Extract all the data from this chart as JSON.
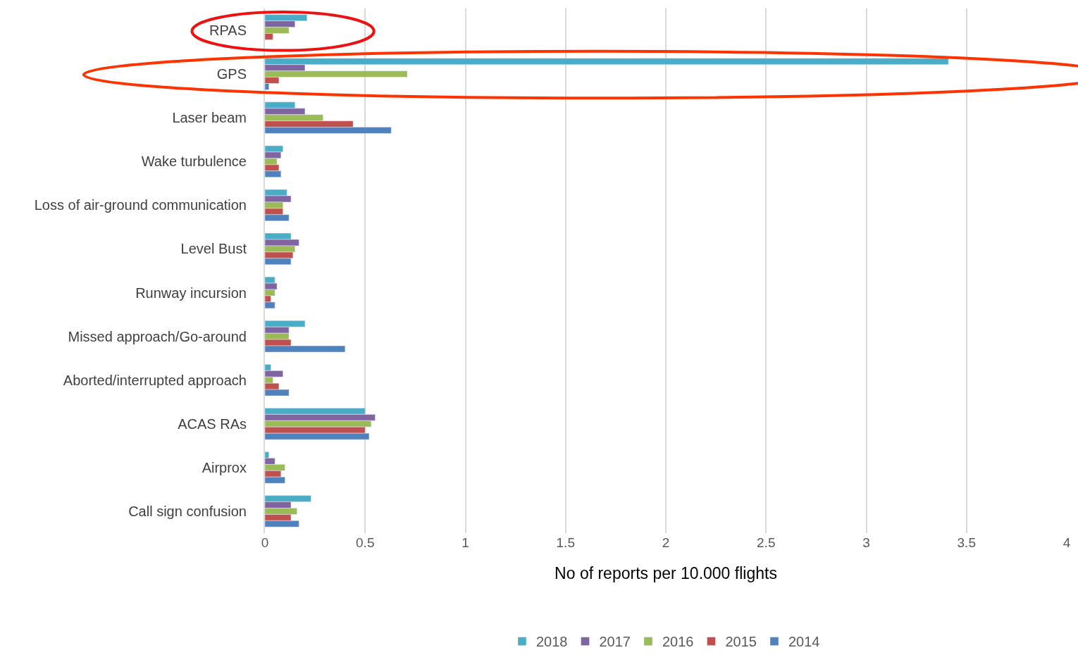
{
  "chart_data": {
    "type": "bar",
    "orientation": "horizontal",
    "xlabel": "No of reports per 10.000 flights",
    "categories": [
      "RPAS",
      "GPS",
      "Laser beam",
      "Wake turbulence",
      "Loss of air-ground communication",
      "Level Bust",
      "Runway incursion",
      "Missed approach/Go-around",
      "Aborted/interrupted approach",
      "ACAS RAs",
      "Airprox",
      "Call sign confusion"
    ],
    "series": [
      {
        "name": "2018",
        "color": "#4bacc6",
        "values": [
          0.21,
          3.41,
          0.15,
          0.09,
          0.11,
          0.13,
          0.05,
          0.2,
          0.03,
          0.5,
          0.02,
          0.23
        ]
      },
      {
        "name": "2017",
        "color": "#8064a2",
        "values": [
          0.15,
          0.2,
          0.2,
          0.08,
          0.13,
          0.17,
          0.06,
          0.12,
          0.09,
          0.55,
          0.05,
          0.13
        ]
      },
      {
        "name": "2016",
        "color": "#9bbb59",
        "values": [
          0.12,
          0.71,
          0.29,
          0.06,
          0.09,
          0.15,
          0.05,
          0.12,
          0.04,
          0.53,
          0.1,
          0.16
        ]
      },
      {
        "name": "2015",
        "color": "#c0504d",
        "values": [
          0.04,
          0.07,
          0.44,
          0.07,
          0.09,
          0.14,
          0.03,
          0.13,
          0.07,
          0.5,
          0.08,
          0.13
        ]
      },
      {
        "name": "2014",
        "color": "#4f81bd",
        "values": [
          null,
          0.02,
          0.63,
          0.08,
          0.12,
          0.13,
          0.05,
          0.4,
          0.12,
          0.52,
          0.1,
          0.17
        ]
      }
    ],
    "xlim": [
      0,
      4
    ],
    "xticks": [
      0,
      0.5,
      1,
      1.5,
      2,
      2.5,
      3,
      3.5,
      4
    ],
    "grid": "x",
    "legend": "bottom"
  }
}
